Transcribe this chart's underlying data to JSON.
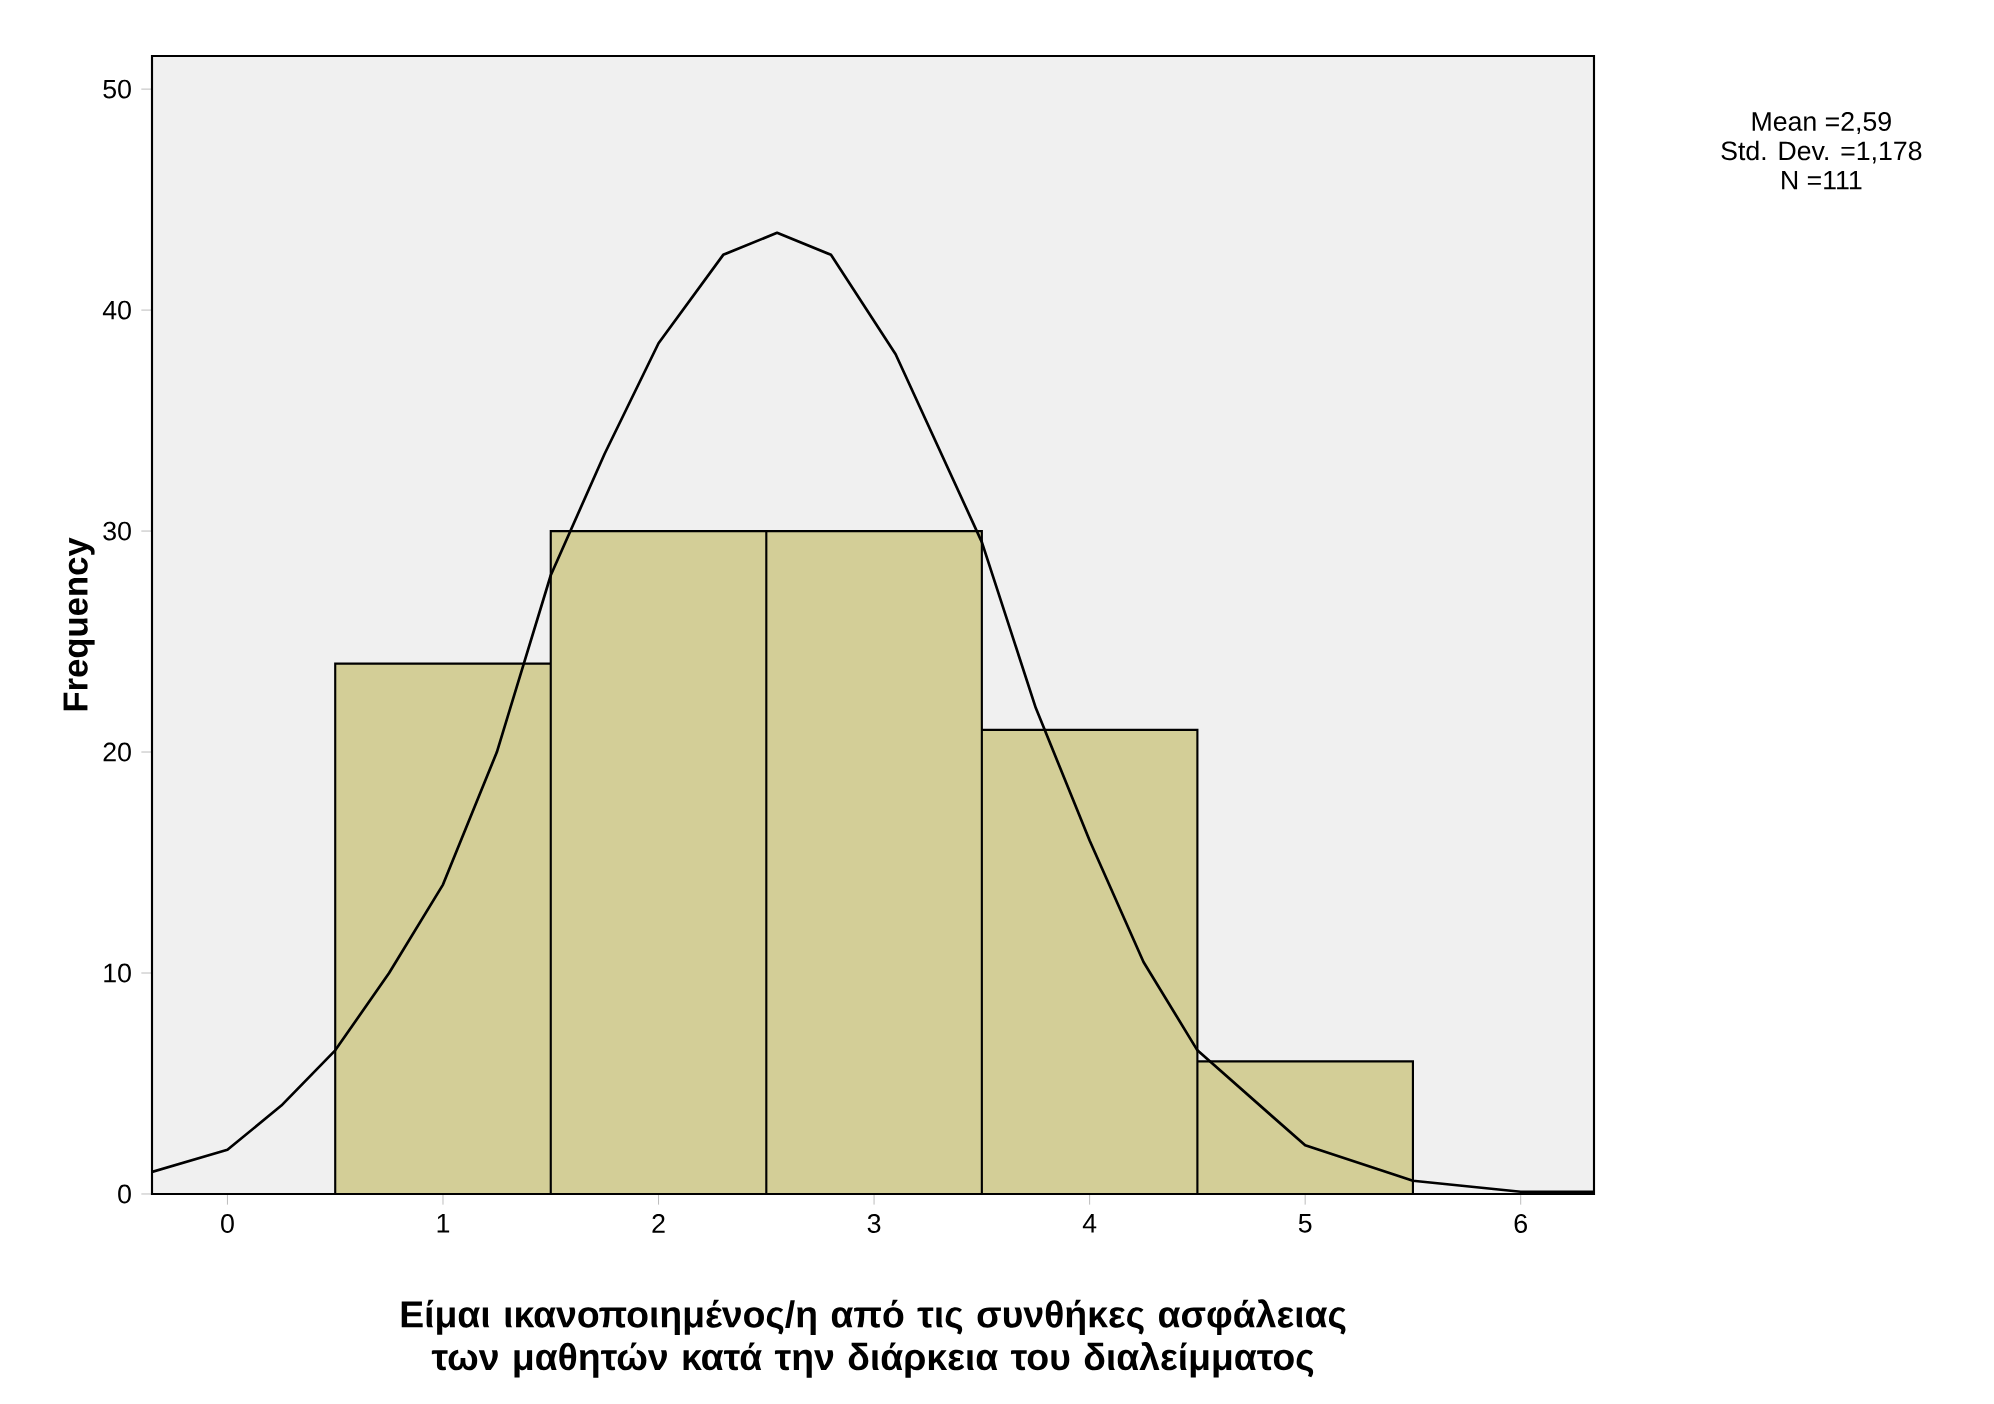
{
  "chart_data": {
    "type": "histogram",
    "xlabel": "Είμαι ικανοποιημένος/η από τις συνθήκες ασφάλειας των μαθητών κατά την διάρκεια του διαλείμματος",
    "ylabel": "Frequency",
    "bins": [
      0.5,
      1.5,
      2.5,
      3.5,
      4.5,
      5.5
    ],
    "values": [
      24,
      30,
      30,
      21,
      6
    ],
    "color": "#d3ce97",
    "series": [
      {
        "type": "line",
        "color": "#000000",
        "x": [
          -0.35,
          0,
          0.25,
          0.5,
          0.75,
          1.0,
          1.25,
          1.5,
          1.75,
          2.0,
          2.3,
          2.55,
          2.8,
          3.1,
          3.5,
          3.75,
          4.0,
          4.25,
          4.5,
          5.0,
          5.5,
          6.0,
          6.34
        ],
        "values": [
          1.0,
          2.0,
          4.0,
          6.5,
          10,
          14,
          20,
          28,
          33.5,
          38.5,
          42.5,
          43.5,
          42.5,
          38,
          29.5,
          22,
          16,
          10.5,
          6.5,
          2.2,
          0.6,
          0.1,
          0.1
        ]
      }
    ],
    "xlim": [
      -0.35,
      6.34
    ],
    "ylim": [
      0,
      51.5
    ],
    "xticks": [
      0,
      1,
      2,
      3,
      4,
      5,
      6
    ],
    "yticks": [
      0,
      10,
      20,
      30,
      40,
      50
    ],
    "grid": false,
    "annotations": [
      "Mean =2,59",
      "Std. Dev. =1,178",
      "N =111"
    ]
  }
}
